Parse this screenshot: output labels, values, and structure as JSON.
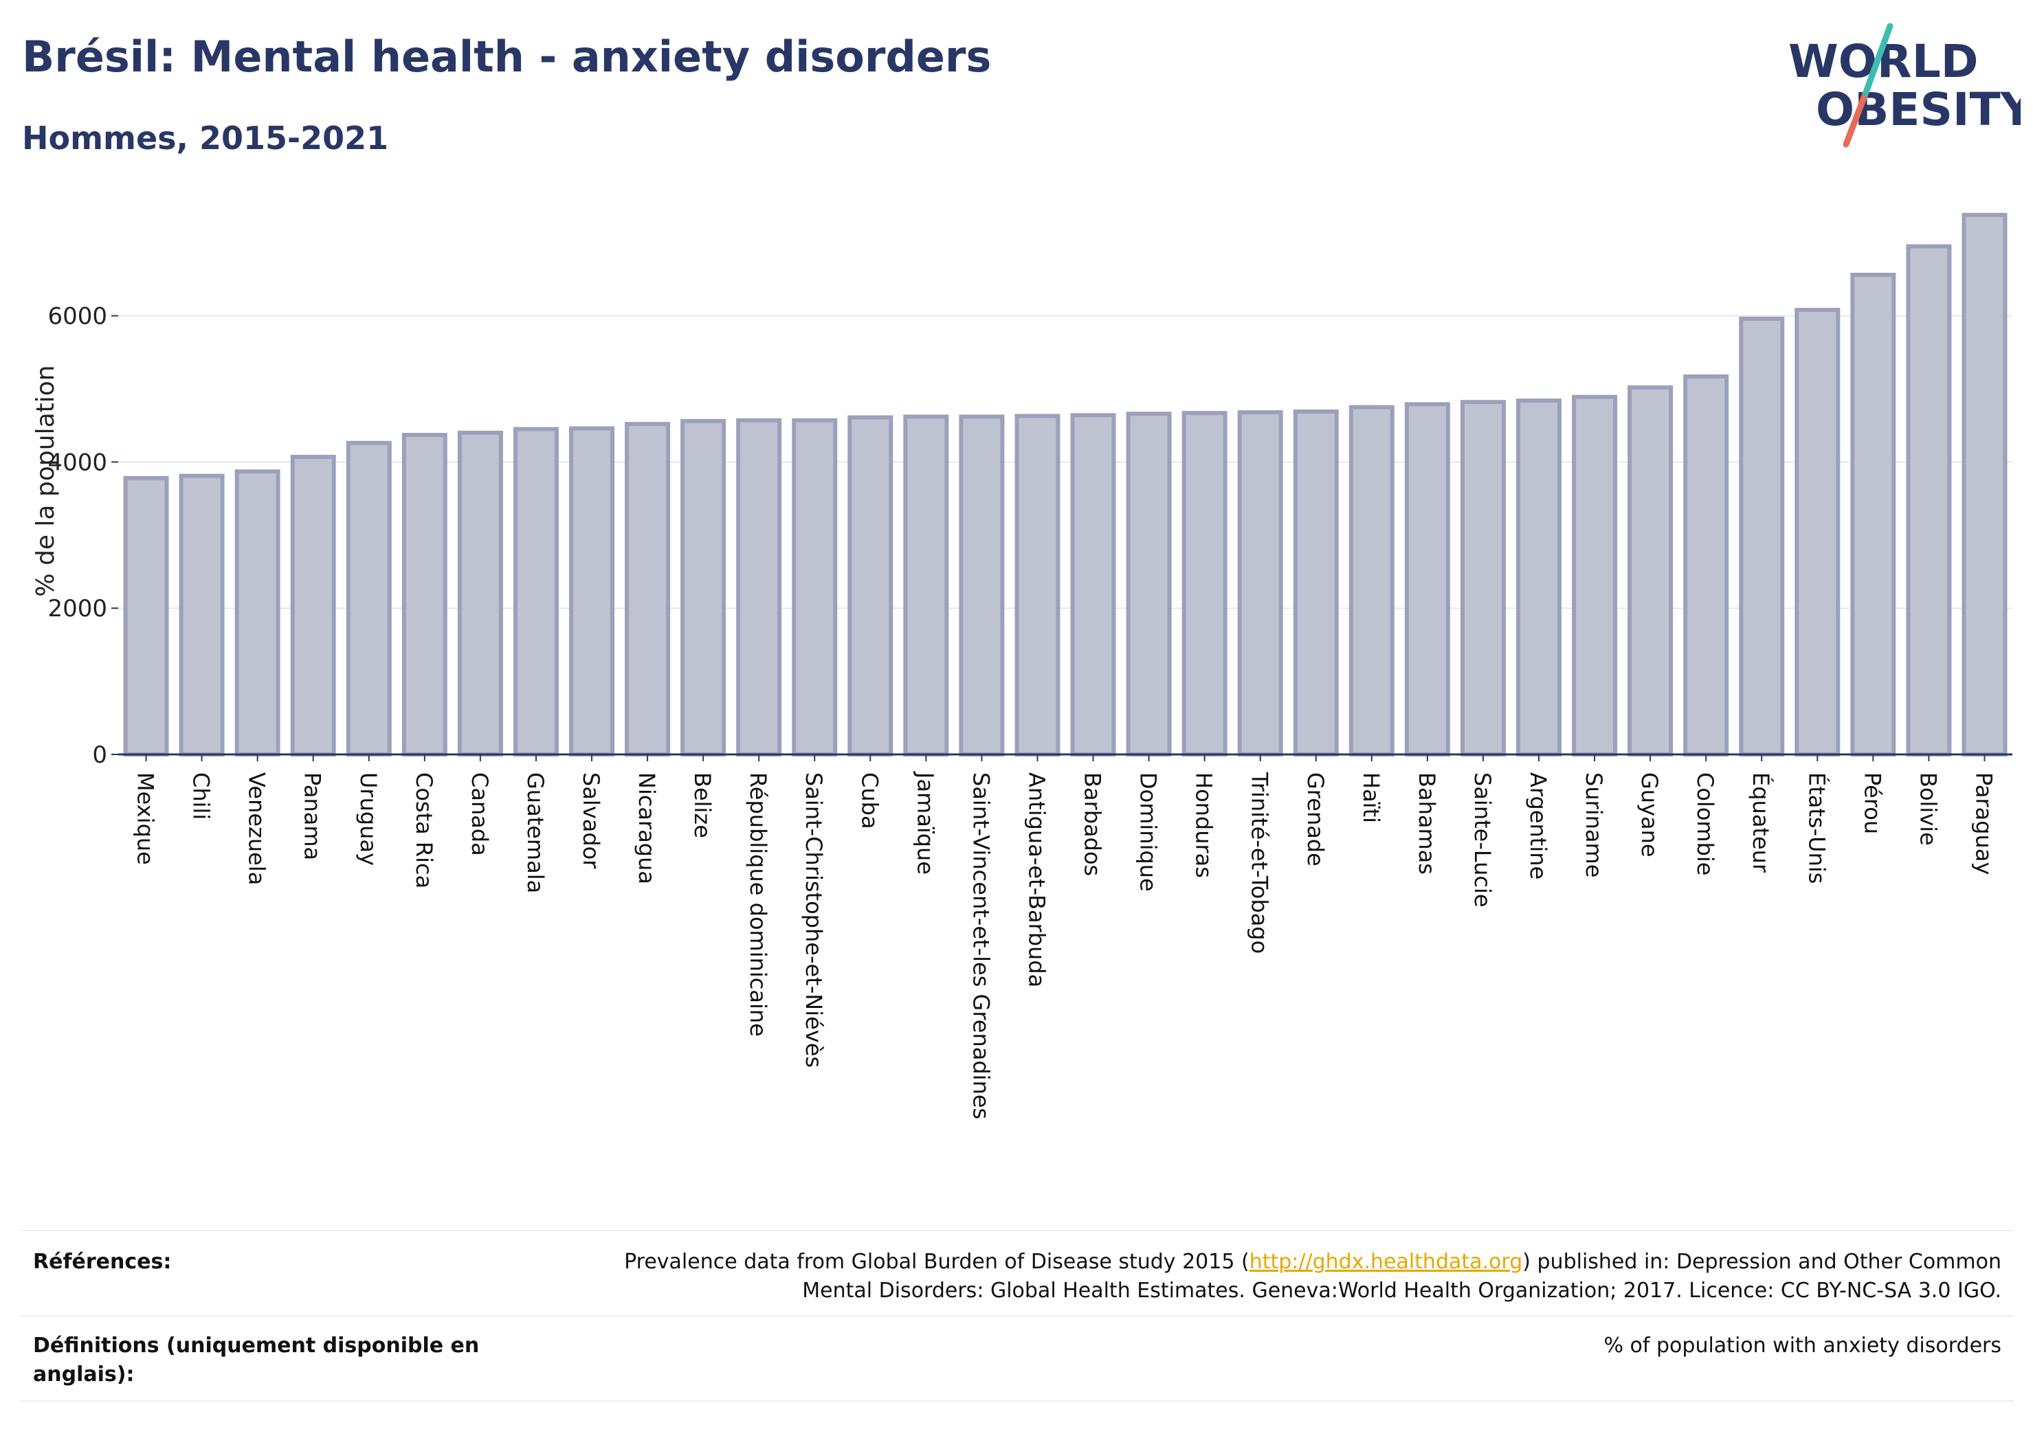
{
  "header": {
    "title": "Brésil: Mental health - anxiety disorders",
    "subtitle": "Hommes, 2015-2021"
  },
  "logo": {
    "line1": "WORLD",
    "line2": "OBESITY"
  },
  "colors": {
    "title": "#283766",
    "bar_fill": "#bfc3d1",
    "bar_stroke": "#9ba1bb",
    "axis": "#283766",
    "grid": "#e6e8ee",
    "logo_text": "#283766",
    "logo_slash_top": "#3dbdb1",
    "logo_slash_bottom": "#e86a5a",
    "link": "#e5a800"
  },
  "chart_data": {
    "type": "bar",
    "ylabel": "% de la population",
    "xlabel": "",
    "ylim": [
      0,
      7500
    ],
    "yticks": [
      0,
      2000,
      4000,
      6000
    ],
    "grid": true,
    "categories": [
      "Mexique",
      "Chili",
      "Venezuela",
      "Panama",
      "Uruguay",
      "Costa Rica",
      "Canada",
      "Guatemala",
      "Salvador",
      "Nicaragua",
      "Belize",
      "République dominicaine",
      "Saint-Christophe-et-Niévès",
      "Cuba",
      "Jamaïque",
      "Saint-Vincent-et-les Grenadines",
      "Antigua-et-Barbuda",
      "Barbados",
      "Dominique",
      "Honduras",
      "Trinité-et-Tobago",
      "Grenade",
      "Haïti",
      "Bahamas",
      "Sainte-Lucie",
      "Argentine",
      "Suriname",
      "Guyane",
      "Colombie",
      "Équateur",
      "États-Unis",
      "Pérou",
      "Bolivie",
      "Paraguay"
    ],
    "values": [
      3780,
      3810,
      3870,
      4070,
      4260,
      4370,
      4400,
      4450,
      4460,
      4520,
      4560,
      4570,
      4570,
      4610,
      4620,
      4620,
      4630,
      4640,
      4660,
      4670,
      4680,
      4690,
      4750,
      4790,
      4820,
      4840,
      4890,
      5020,
      5170,
      5960,
      6080,
      6560,
      6950,
      7380
    ]
  },
  "references": {
    "label": "Références:",
    "text_before": "Prevalence data from Global Burden of Disease study 2015 (",
    "link": "http://ghdx.healthdata.org",
    "text_after": ") published in: Depression and Other Common Mental Disorders: Global Health Estimates. Geneva:World Health Organization; 2017. Licence: CC BY-NC-SA 3.0 IGO."
  },
  "definitions": {
    "label": "Définitions (uniquement disponible en anglais):",
    "text": "% of population with anxiety disorders"
  }
}
